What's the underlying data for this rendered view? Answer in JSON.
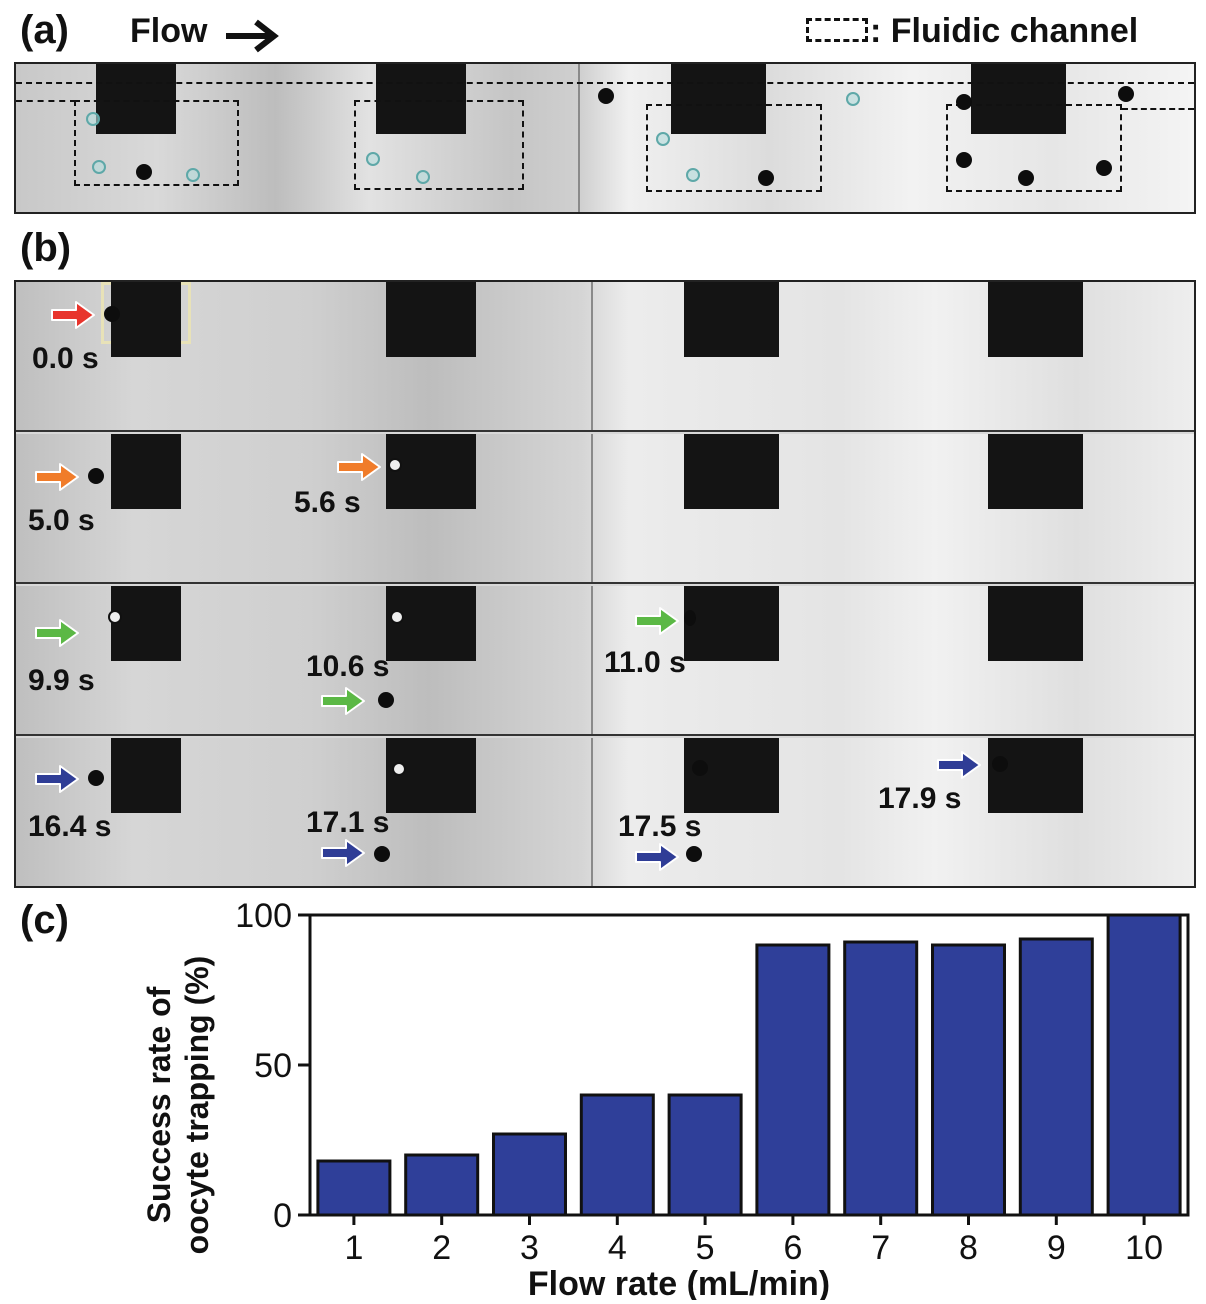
{
  "panels": {
    "a": {
      "label": "(a)",
      "flow_label": "Flow",
      "legend_symbol": "[ - - ]",
      "legend_text": ": Fluidic channel"
    },
    "b": {
      "label": "(b)",
      "rows": [
        [
          {
            "time": "0.0 s",
            "color": "red"
          }
        ],
        [
          {
            "time": "5.0 s",
            "color": "orange"
          },
          {
            "time": "5.6 s",
            "color": "orange"
          }
        ],
        [
          {
            "time": "9.9 s",
            "color": "green"
          },
          {
            "time": "10.6 s",
            "color": "green"
          },
          {
            "time": "11.0 s",
            "color": "green"
          }
        ],
        [
          {
            "time": "16.4 s",
            "color": "blue"
          },
          {
            "time": "17.1 s",
            "color": "blue"
          },
          {
            "time": "17.5 s",
            "color": "blue"
          },
          {
            "time": "17.9 s",
            "color": "blue"
          }
        ]
      ]
    },
    "c": {
      "label": "(c)"
    }
  },
  "colors": {
    "red": "#e8342c",
    "orange": "#f07c2a",
    "green": "#5bb845",
    "blue": "#2f3d96",
    "bar": "#2f3f99"
  },
  "chart_data": {
    "type": "bar",
    "categories": [
      "1",
      "2",
      "3",
      "4",
      "5",
      "6",
      "7",
      "8",
      "9",
      "10"
    ],
    "values": [
      18,
      20,
      27,
      40,
      40,
      90,
      91,
      90,
      92,
      100
    ],
    "xlabel": "Flow rate (mL/min)",
    "ylabel_line1": "Success rate of",
    "ylabel_line2": "oocyte trapping (%)",
    "ylim": [
      0,
      100
    ],
    "yticks": [
      "0",
      "50",
      "100"
    ],
    "ytick_values": [
      0,
      50,
      100
    ],
    "grid": false
  }
}
